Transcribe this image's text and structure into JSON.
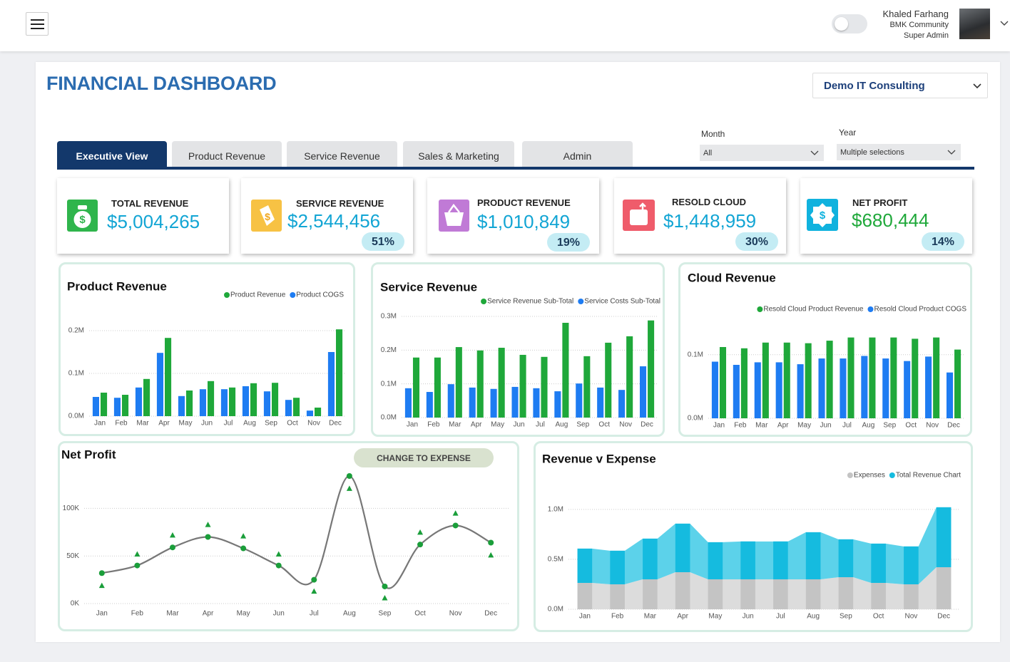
{
  "header": {
    "user_name": "Khaled Farhang",
    "organization": "BMK Community",
    "role": "Super Admin"
  },
  "dashboard": {
    "title": "FINANCIAL DASHBOARD",
    "company": "Demo IT Consulting",
    "tabs": [
      "Executive View",
      "Product Revenue",
      "Service Revenue",
      "Sales & Marketing",
      "Admin"
    ],
    "filters": [
      {
        "label": "Month",
        "value": "All"
      },
      {
        "label": "Year",
        "value": "Multiple selections"
      }
    ],
    "button": "CHANGE TO EXPENSE"
  },
  "kpis": [
    {
      "label": "TOTAL REVENUE",
      "value": "$5,004,265"
    },
    {
      "label": "SERVICE REVENUE",
      "value": "$2,544,456",
      "share": "51%"
    },
    {
      "label": "PRODUCT REVENUE",
      "value": "$1,010,849",
      "share": "19%"
    },
    {
      "label": "RESOLD CLOUD",
      "value": "$1,448,959",
      "share": "30%"
    },
    {
      "label": "NET PROFIT",
      "value": "$680,444",
      "share": "14%"
    }
  ],
  "chart_data": [
    {
      "type": "bar",
      "title": "Product Revenue",
      "categories": [
        "Jan",
        "Feb",
        "Mar",
        "Apr",
        "May",
        "Jun",
        "Jul",
        "Aug",
        "Sep",
        "Oct",
        "Nov",
        "Dec"
      ],
      "series": [
        {
          "name": "Product Revenue",
          "color": "#1fa83a",
          "values": [
            55000,
            50000,
            87000,
            183000,
            60000,
            82000,
            67000,
            77000,
            78000,
            43000,
            20000,
            203000
          ]
        },
        {
          "name": "Product COGS",
          "color": "#1e7cf2",
          "values": [
            45000,
            43000,
            67000,
            148000,
            47000,
            63000,
            63000,
            70000,
            58000,
            38000,
            13000,
            150000
          ]
        }
      ],
      "ylim": [
        0,
        220000
      ],
      "yticks": [
        {
          "value": 0,
          "label": "0.0M"
        },
        {
          "value": 100000,
          "label": "0.1M"
        },
        {
          "value": 200000,
          "label": "0.2M"
        }
      ],
      "grid": true
    },
    {
      "type": "bar",
      "title": "Service Revenue",
      "categories": [
        "Jan",
        "Feb",
        "Mar",
        "Apr",
        "May",
        "Jun",
        "Jul",
        "Aug",
        "Sep",
        "Oct",
        "Nov",
        "Dec"
      ],
      "series": [
        {
          "name": "Service Revenue Sub-Total",
          "color": "#1fa83a",
          "values": [
            178000,
            178000,
            209000,
            199000,
            207000,
            186000,
            180000,
            281000,
            182000,
            222000,
            241000,
            288000
          ]
        },
        {
          "name": "Service Costs Sub-Total",
          "color": "#1e7cf2",
          "values": [
            87000,
            76000,
            99000,
            89000,
            85000,
            91000,
            87000,
            78000,
            101000,
            89000,
            82000,
            152000
          ]
        }
      ],
      "ylim": [
        0,
        300000
      ],
      "yticks": [
        {
          "value": 0,
          "label": "0.0M"
        },
        {
          "value": 100000,
          "label": "0.1M"
        },
        {
          "value": 200000,
          "label": "0.2M"
        },
        {
          "value": 300000,
          "label": "0.3M"
        }
      ],
      "grid": true
    },
    {
      "type": "bar",
      "title": "Cloud Revenue",
      "categories": [
        "Jan",
        "Feb",
        "Mar",
        "Apr",
        "May",
        "Jun",
        "Jul",
        "Aug",
        "Sep",
        "Oct",
        "Nov",
        "Dec"
      ],
      "series": [
        {
          "name": "Resold Cloud Product Revenue",
          "color": "#1fa83a",
          "values": [
            112000,
            110000,
            119000,
            119000,
            118000,
            122000,
            127000,
            127000,
            127000,
            125000,
            127000,
            108000
          ]
        },
        {
          "name": "Resold Cloud Product COGS",
          "color": "#1e7cf2",
          "values": [
            89000,
            84000,
            88000,
            88000,
            85000,
            94000,
            94000,
            98000,
            94000,
            90000,
            97000,
            72000
          ]
        }
      ],
      "ylim": [
        0,
        140000
      ],
      "yticks": [
        {
          "value": 0,
          "label": "0.0M"
        },
        {
          "value": 100000,
          "label": "0.1M"
        }
      ],
      "grid": true
    },
    {
      "type": "line",
      "title": "Net Profit",
      "categories": [
        "Jan",
        "Feb",
        "Mar",
        "Apr",
        "May",
        "Jun",
        "Jul",
        "Aug",
        "Sep",
        "Oct",
        "Nov",
        "Dec"
      ],
      "series": [
        {
          "color": "#1a9e3a",
          "line_color": "#777777",
          "marker": "circle",
          "values": [
            32000,
            40000,
            59000,
            70000,
            58000,
            40000,
            25000,
            134000,
            18000,
            62000,
            82000,
            64000
          ]
        },
        {
          "color": "#1a9e3a",
          "marker": "triangle",
          "values": [
            19000,
            52000,
            72000,
            83000,
            71000,
            52000,
            13000,
            121000,
            6000,
            75000,
            95000,
            51000
          ]
        }
      ],
      "ylim": [
        0,
        140000
      ],
      "yticks": [
        {
          "value": 0,
          "label": "0K"
        },
        {
          "value": 50000,
          "label": "50K"
        },
        {
          "value": 100000,
          "label": "100K"
        }
      ],
      "grid": true
    },
    {
      "type": "area",
      "title": "Revenue v Expense",
      "stacked": true,
      "categories": [
        "Jan",
        "Feb",
        "Mar",
        "Apr",
        "May",
        "Jun",
        "Jul",
        "Aug",
        "Sep",
        "Oct",
        "Nov",
        "Dec"
      ],
      "series": [
        {
          "name": "Expenses",
          "color": "#c4c4c4",
          "light_color": "#dcdcdc",
          "values": [
            264000,
            250000,
            300000,
            371000,
            300000,
            300000,
            300000,
            300000,
            321000,
            264000,
            250000,
            421000
          ]
        },
        {
          "name": "Total Revenue Chart",
          "color": "#15bbdf",
          "light_color": "#5cd2ea",
          "values": [
            343000,
            336000,
            407000,
            486000,
            371000,
            379000,
            379000,
            471000,
            379000,
            393000,
            379000,
            600000
          ]
        }
      ],
      "ylim": [
        0,
        1070000
      ],
      "yticks": [
        {
          "value": 0,
          "label": "0.0M"
        },
        {
          "value": 500000,
          "label": "0.5M"
        },
        {
          "value": 1000000,
          "label": "1.0M"
        }
      ],
      "grid": true
    }
  ]
}
